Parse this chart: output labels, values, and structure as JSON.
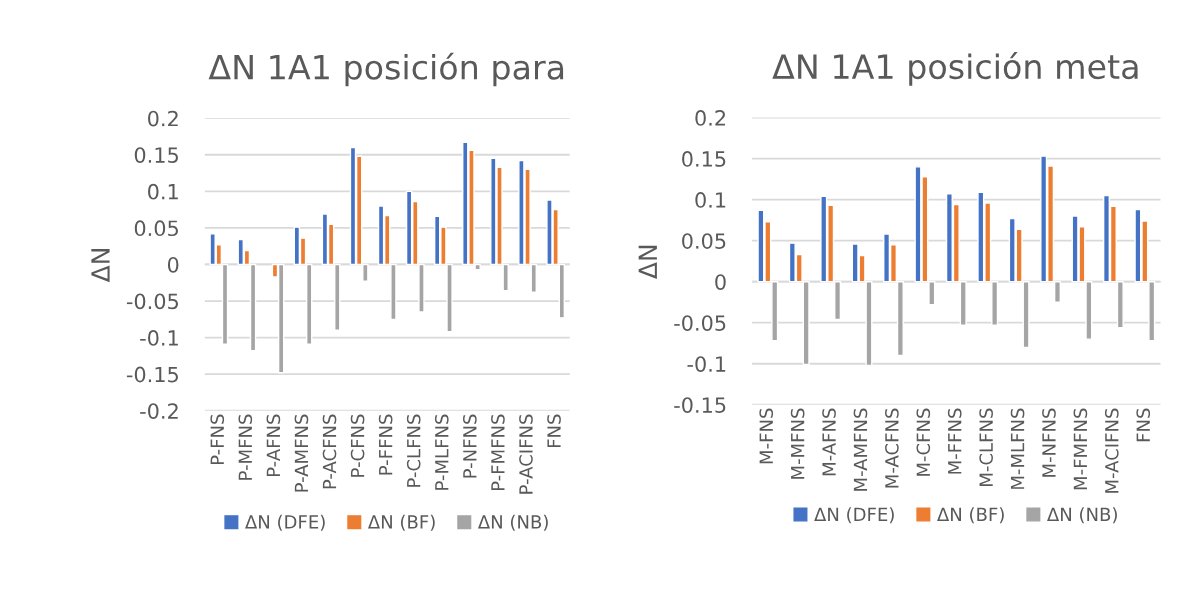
{
  "chart_data": [
    {
      "type": "bar",
      "title": "ΔN 1A1 posición para",
      "ylabel": "ΔN",
      "categories": [
        "P-FNS",
        "P-MFNS",
        "P-AFNS",
        "P-AMFNS",
        "P-ACFNS",
        "P-CFNS",
        "P-FFNS",
        "P-CLFNS",
        "P-MLFNS",
        "P-NFNS",
        "P-FMFNS",
        "P-ACIFNS",
        "FNS"
      ],
      "series": [
        {
          "name": "ΔN (DFE)",
          "color": "#4472c4",
          "values": [
            0.042,
            0.034,
            null,
            0.051,
            0.069,
            0.16,
            0.08,
            0.1,
            0.066,
            0.167,
            0.145,
            0.142,
            0.088
          ]
        },
        {
          "name": "ΔN (BF)",
          "color": "#ed7d31",
          "values": [
            0.027,
            0.019,
            -0.017,
            0.036,
            0.055,
            0.148,
            0.067,
            0.086,
            0.051,
            0.156,
            0.133,
            0.13,
            0.075
          ]
        },
        {
          "name": "ΔN (NB)",
          "color": "#a5a5a5",
          "values": [
            -0.109,
            -0.118,
            -0.148,
            -0.109,
            -0.09,
            -0.023,
            -0.075,
            -0.065,
            -0.092,
            -0.007,
            -0.036,
            -0.038,
            -0.073
          ]
        }
      ],
      "ylim": [
        -0.2,
        0.2
      ],
      "yticks": [
        -0.2,
        -0.15,
        -0.1,
        -0.05,
        0,
        0.05,
        0.1,
        0.15,
        0.2
      ],
      "grid": "y",
      "legend": "bottom"
    },
    {
      "type": "bar",
      "title": "ΔN 1A1 posición meta",
      "ylabel": "ΔN",
      "categories": [
        "M-FNS",
        "M-MFNS",
        "M-AFNS",
        "M-AMFNS",
        "M-ACFNS",
        "M-CFNS",
        "M-FFNS",
        "M-CLFNS",
        "M-MLFNS",
        "M-NFNS",
        "M-FMFNS",
        "M-ACIFNS",
        "FNS"
      ],
      "series": [
        {
          "name": "ΔN (DFE)",
          "color": "#4472c4",
          "values": [
            0.087,
            0.047,
            0.104,
            0.046,
            0.058,
            0.14,
            0.107,
            0.109,
            0.077,
            0.153,
            0.08,
            0.105,
            0.088
          ]
        },
        {
          "name": "ΔN (BF)",
          "color": "#ed7d31",
          "values": [
            0.073,
            0.033,
            0.093,
            0.032,
            0.045,
            0.128,
            0.094,
            0.096,
            0.064,
            0.141,
            0.067,
            0.092,
            0.074
          ]
        },
        {
          "name": "ΔN (NB)",
          "color": "#a5a5a5",
          "values": [
            -0.072,
            -0.101,
            -0.046,
            -0.102,
            -0.09,
            -0.028,
            -0.053,
            -0.053,
            -0.08,
            -0.025,
            -0.07,
            -0.056,
            -0.072
          ]
        }
      ],
      "ylim": [
        -0.15,
        0.2
      ],
      "yticks": [
        -0.15,
        -0.1,
        -0.05,
        0,
        0.05,
        0.1,
        0.15,
        0.2
      ],
      "grid": "y",
      "legend": "bottom"
    }
  ]
}
